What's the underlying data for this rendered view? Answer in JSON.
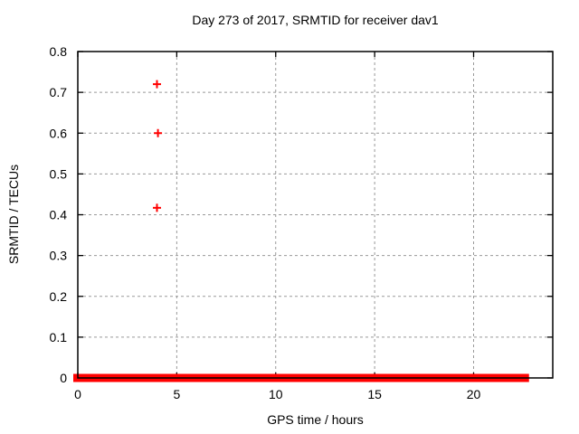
{
  "window": {
    "background": "#ffffff"
  },
  "chart_data": {
    "type": "scatter",
    "title": "Day 273 of 2017, SRMTID for receiver dav1",
    "xlabel": "GPS time / hours",
    "ylabel": "SRMTID / TECUs",
    "xlim": [
      0,
      24
    ],
    "ylim": [
      0,
      0.8
    ],
    "xticks": [
      0,
      5,
      10,
      15,
      20
    ],
    "xtick_labels": [
      "0",
      "5",
      "10",
      "15",
      "20"
    ],
    "yticks": [
      0,
      0.1,
      0.2,
      0.3,
      0.4,
      0.5,
      0.6,
      0.7,
      0.8
    ],
    "ytick_labels": [
      "0",
      "0.1",
      "0.2",
      "0.3",
      "0.4",
      "0.5",
      "0.6",
      "0.7",
      "0.8"
    ],
    "grid": true,
    "legend_position": "none",
    "series": [
      {
        "name": "SRMTID",
        "marker": "plus",
        "color": "#ff0000",
        "points": [
          {
            "x": 4.0,
            "y": 0.72
          },
          {
            "x": 4.05,
            "y": 0.6
          },
          {
            "x": 4.0,
            "y": 0.417
          }
        ],
        "baseline_band": {
          "y": 0,
          "x_start": 0,
          "x_end": 22.8
        }
      }
    ],
    "colors": {
      "grid": "#999999",
      "frame": "#000000",
      "text": "#000000",
      "series": "#ff0000"
    }
  }
}
